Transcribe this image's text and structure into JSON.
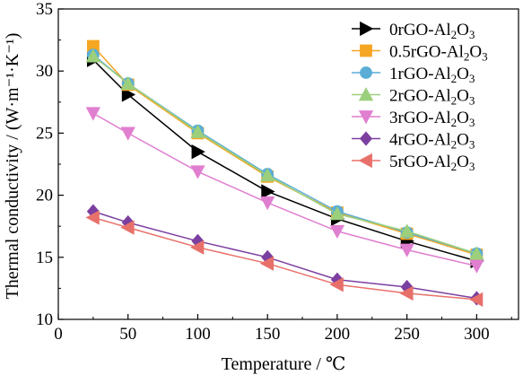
{
  "chart_data": {
    "type": "line",
    "title": "",
    "xlabel": "Temperature / ℃",
    "ylabel": "Thermal conductivity / (W·m⁻¹·K⁻¹)",
    "xlim": [
      0,
      330
    ],
    "ylim": [
      10,
      35
    ],
    "xticks": [
      0,
      50,
      100,
      150,
      200,
      250,
      300
    ],
    "yticks": [
      10,
      15,
      20,
      25,
      30,
      35
    ],
    "grid": false,
    "legend_position": "top-right",
    "x": [
      25,
      50,
      100,
      150,
      200,
      250,
      300
    ],
    "series": [
      {
        "name": "0rGO-Al₂O₃",
        "prefix": "0rGO-Al",
        "sub1": "2",
        "mid": "O",
        "sub2": "3",
        "color": "#000000",
        "marker": "triangle-right",
        "values": [
          30.9,
          28.1,
          23.5,
          20.3,
          18.1,
          16.3,
          14.7
        ]
      },
      {
        "name": "0.5rGO-Al₂O₃",
        "prefix": "0.5rGO-Al",
        "sub1": "2",
        "mid": "O",
        "sub2": "3",
        "color": "#f5a623",
        "marker": "square",
        "values": [
          32.0,
          28.9,
          25.0,
          21.5,
          18.6,
          16.9,
          15.2
        ]
      },
      {
        "name": "1rGO-Al₂O₃",
        "prefix": "1rGO-Al",
        "sub1": "2",
        "mid": "O",
        "sub2": "3",
        "color": "#5aaed6",
        "marker": "circle",
        "values": [
          31.3,
          29.0,
          25.2,
          21.7,
          18.7,
          17.0,
          15.3
        ]
      },
      {
        "name": "2rGO-Al₂O₃",
        "prefix": "2rGO-Al",
        "sub1": "2",
        "mid": "O",
        "sub2": "3",
        "color": "#9ccf7c",
        "marker": "triangle-up",
        "values": [
          31.2,
          29.0,
          25.1,
          21.6,
          18.5,
          17.1,
          15.3
        ]
      },
      {
        "name": "3rGO-Al₂O₃",
        "prefix": "3rGO-Al",
        "sub1": "2",
        "mid": "O",
        "sub2": "3",
        "color": "#e07fd0",
        "marker": "triangle-down",
        "values": [
          26.6,
          25.0,
          21.9,
          19.4,
          17.1,
          15.6,
          14.3
        ]
      },
      {
        "name": "4rGO-Al₂O₃",
        "prefix": "4rGO-Al",
        "sub1": "2",
        "mid": "O",
        "sub2": "3",
        "color": "#7b3fa0",
        "marker": "diamond",
        "values": [
          18.7,
          17.8,
          16.3,
          15.0,
          13.2,
          12.6,
          11.7
        ]
      },
      {
        "name": "5rGO-Al₂O₃",
        "prefix": "5rGO-Al",
        "sub1": "2",
        "mid": "O",
        "sub2": "3",
        "color": "#e8706a",
        "marker": "triangle-left",
        "values": [
          18.2,
          17.4,
          15.8,
          14.5,
          12.8,
          12.1,
          11.6
        ]
      }
    ]
  }
}
